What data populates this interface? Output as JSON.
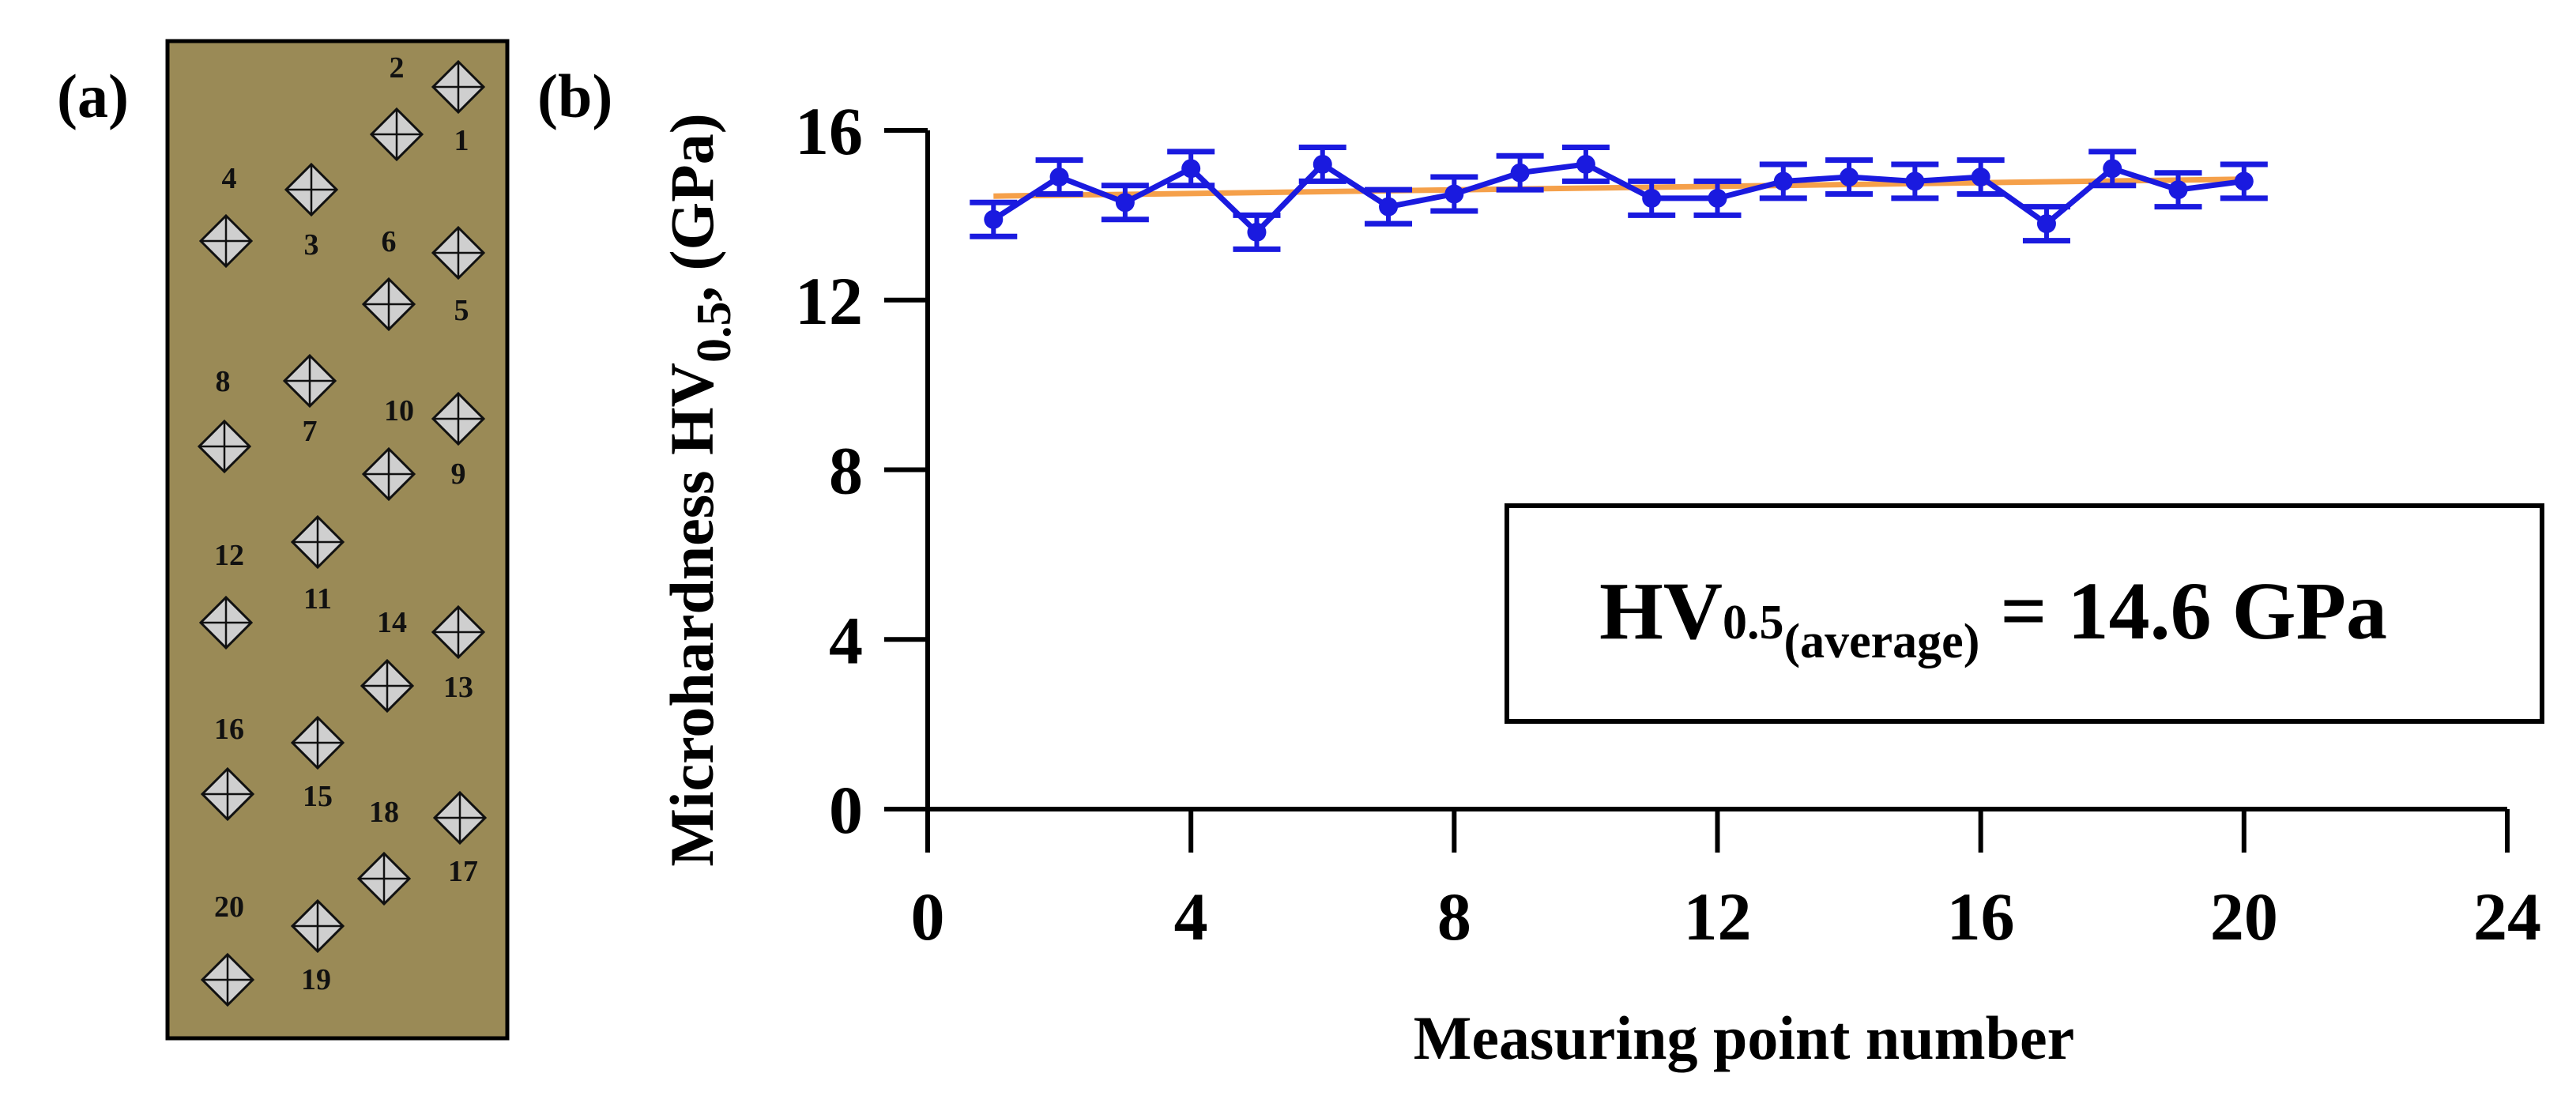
{
  "panel_a": {
    "label": "(a)",
    "sample_color": "#9A8A56",
    "indents": [
      {
        "n": "1"
      },
      {
        "n": "2"
      },
      {
        "n": "3"
      },
      {
        "n": "4"
      },
      {
        "n": "5"
      },
      {
        "n": "6"
      },
      {
        "n": "7"
      },
      {
        "n": "8"
      },
      {
        "n": "9"
      },
      {
        "n": "10"
      },
      {
        "n": "11"
      },
      {
        "n": "12"
      },
      {
        "n": "13"
      },
      {
        "n": "14"
      },
      {
        "n": "15"
      },
      {
        "n": "16"
      },
      {
        "n": "17"
      },
      {
        "n": "18"
      },
      {
        "n": "19"
      },
      {
        "n": "20"
      }
    ]
  },
  "panel_b": {
    "label": "(b)",
    "annotation": {
      "prefix": "HV",
      "subscript": "0.5",
      "sub2": "(average)",
      "suffix": " = 14.6 GPa"
    }
  },
  "chart_data": {
    "type": "line",
    "title": "",
    "xlabel": "Measuring point number",
    "ylabel": {
      "prefix": "Microhardness HV",
      "subscript": "0.5",
      "suffix": ", (GPa)"
    },
    "xlim": [
      0,
      24
    ],
    "ylim": [
      0,
      16
    ],
    "xticks": [
      0,
      4,
      8,
      12,
      16,
      20,
      24
    ],
    "yticks": [
      0,
      4,
      8,
      12,
      16
    ],
    "grid": false,
    "x": [
      1,
      2,
      3,
      4,
      5,
      6,
      7,
      8,
      9,
      10,
      11,
      12,
      13,
      14,
      15,
      16,
      17,
      18,
      19,
      20
    ],
    "series": [
      {
        "color": "#1a1adf",
        "marker": "circle",
        "values": [
          13.9,
          14.9,
          14.3,
          15.1,
          13.6,
          15.2,
          14.2,
          14.5,
          15.0,
          15.2,
          14.4,
          14.4,
          14.8,
          14.9,
          14.8,
          14.9,
          13.8,
          15.1,
          14.6,
          14.8
        ],
        "error": [
          0.4,
          0.4,
          0.4,
          0.4,
          0.4,
          0.4,
          0.4,
          0.4,
          0.4,
          0.4,
          0.4,
          0.4,
          0.4,
          0.4,
          0.4,
          0.4,
          0.4,
          0.4,
          0.4,
          0.4
        ]
      }
    ],
    "trend": {
      "color": "#F5A04A",
      "x": [
        1,
        20
      ],
      "y": [
        14.45,
        14.85
      ]
    }
  }
}
